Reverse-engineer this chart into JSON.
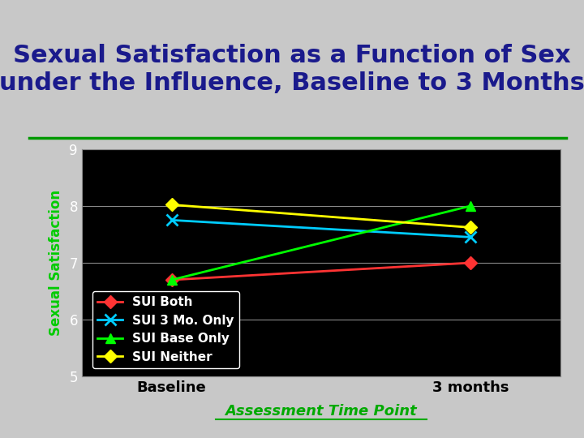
{
  "title": "Sexual Satisfaction as a Function of Sex\nunder the Influence, Baseline to 3 Months",
  "title_color": "#1a1a8c",
  "title_fontsize": 22,
  "xlabel": "Assessment Time Point",
  "xlabel_color": "#00aa00",
  "ylabel": "Sexual Satisfaction",
  "ylabel_color": "#00cc00",
  "background_color": "#c8c8c8",
  "plot_bg_color": "#000000",
  "xtick_labels": [
    "Baseline",
    "3 months"
  ],
  "ylim": [
    5,
    9
  ],
  "yticks": [
    5,
    6,
    7,
    8,
    9
  ],
  "grid_color": "#888888",
  "separator_color": "#009900",
  "series": [
    {
      "label": "SUI Both",
      "color": "#ff3333",
      "marker": "D",
      "markersize": 8,
      "baseline": 6.7,
      "three_months": 7.0
    },
    {
      "label": "SUI 3 Mo. Only",
      "color": "#00ccff",
      "marker": "x",
      "markersize": 10,
      "baseline": 7.75,
      "three_months": 7.45
    },
    {
      "label": "SUI Base Only",
      "color": "#00ff00",
      "marker": "^",
      "markersize": 9,
      "baseline": 6.7,
      "three_months": 8.0
    },
    {
      "label": "SUI Neither",
      "color": "#ffff00",
      "marker": "D",
      "markersize": 8,
      "baseline": 8.02,
      "three_months": 7.62
    }
  ],
  "legend_bg": "#000000",
  "legend_text_color": "#ffffff",
  "legend_fontsize": 11,
  "linewidth": 2.0
}
